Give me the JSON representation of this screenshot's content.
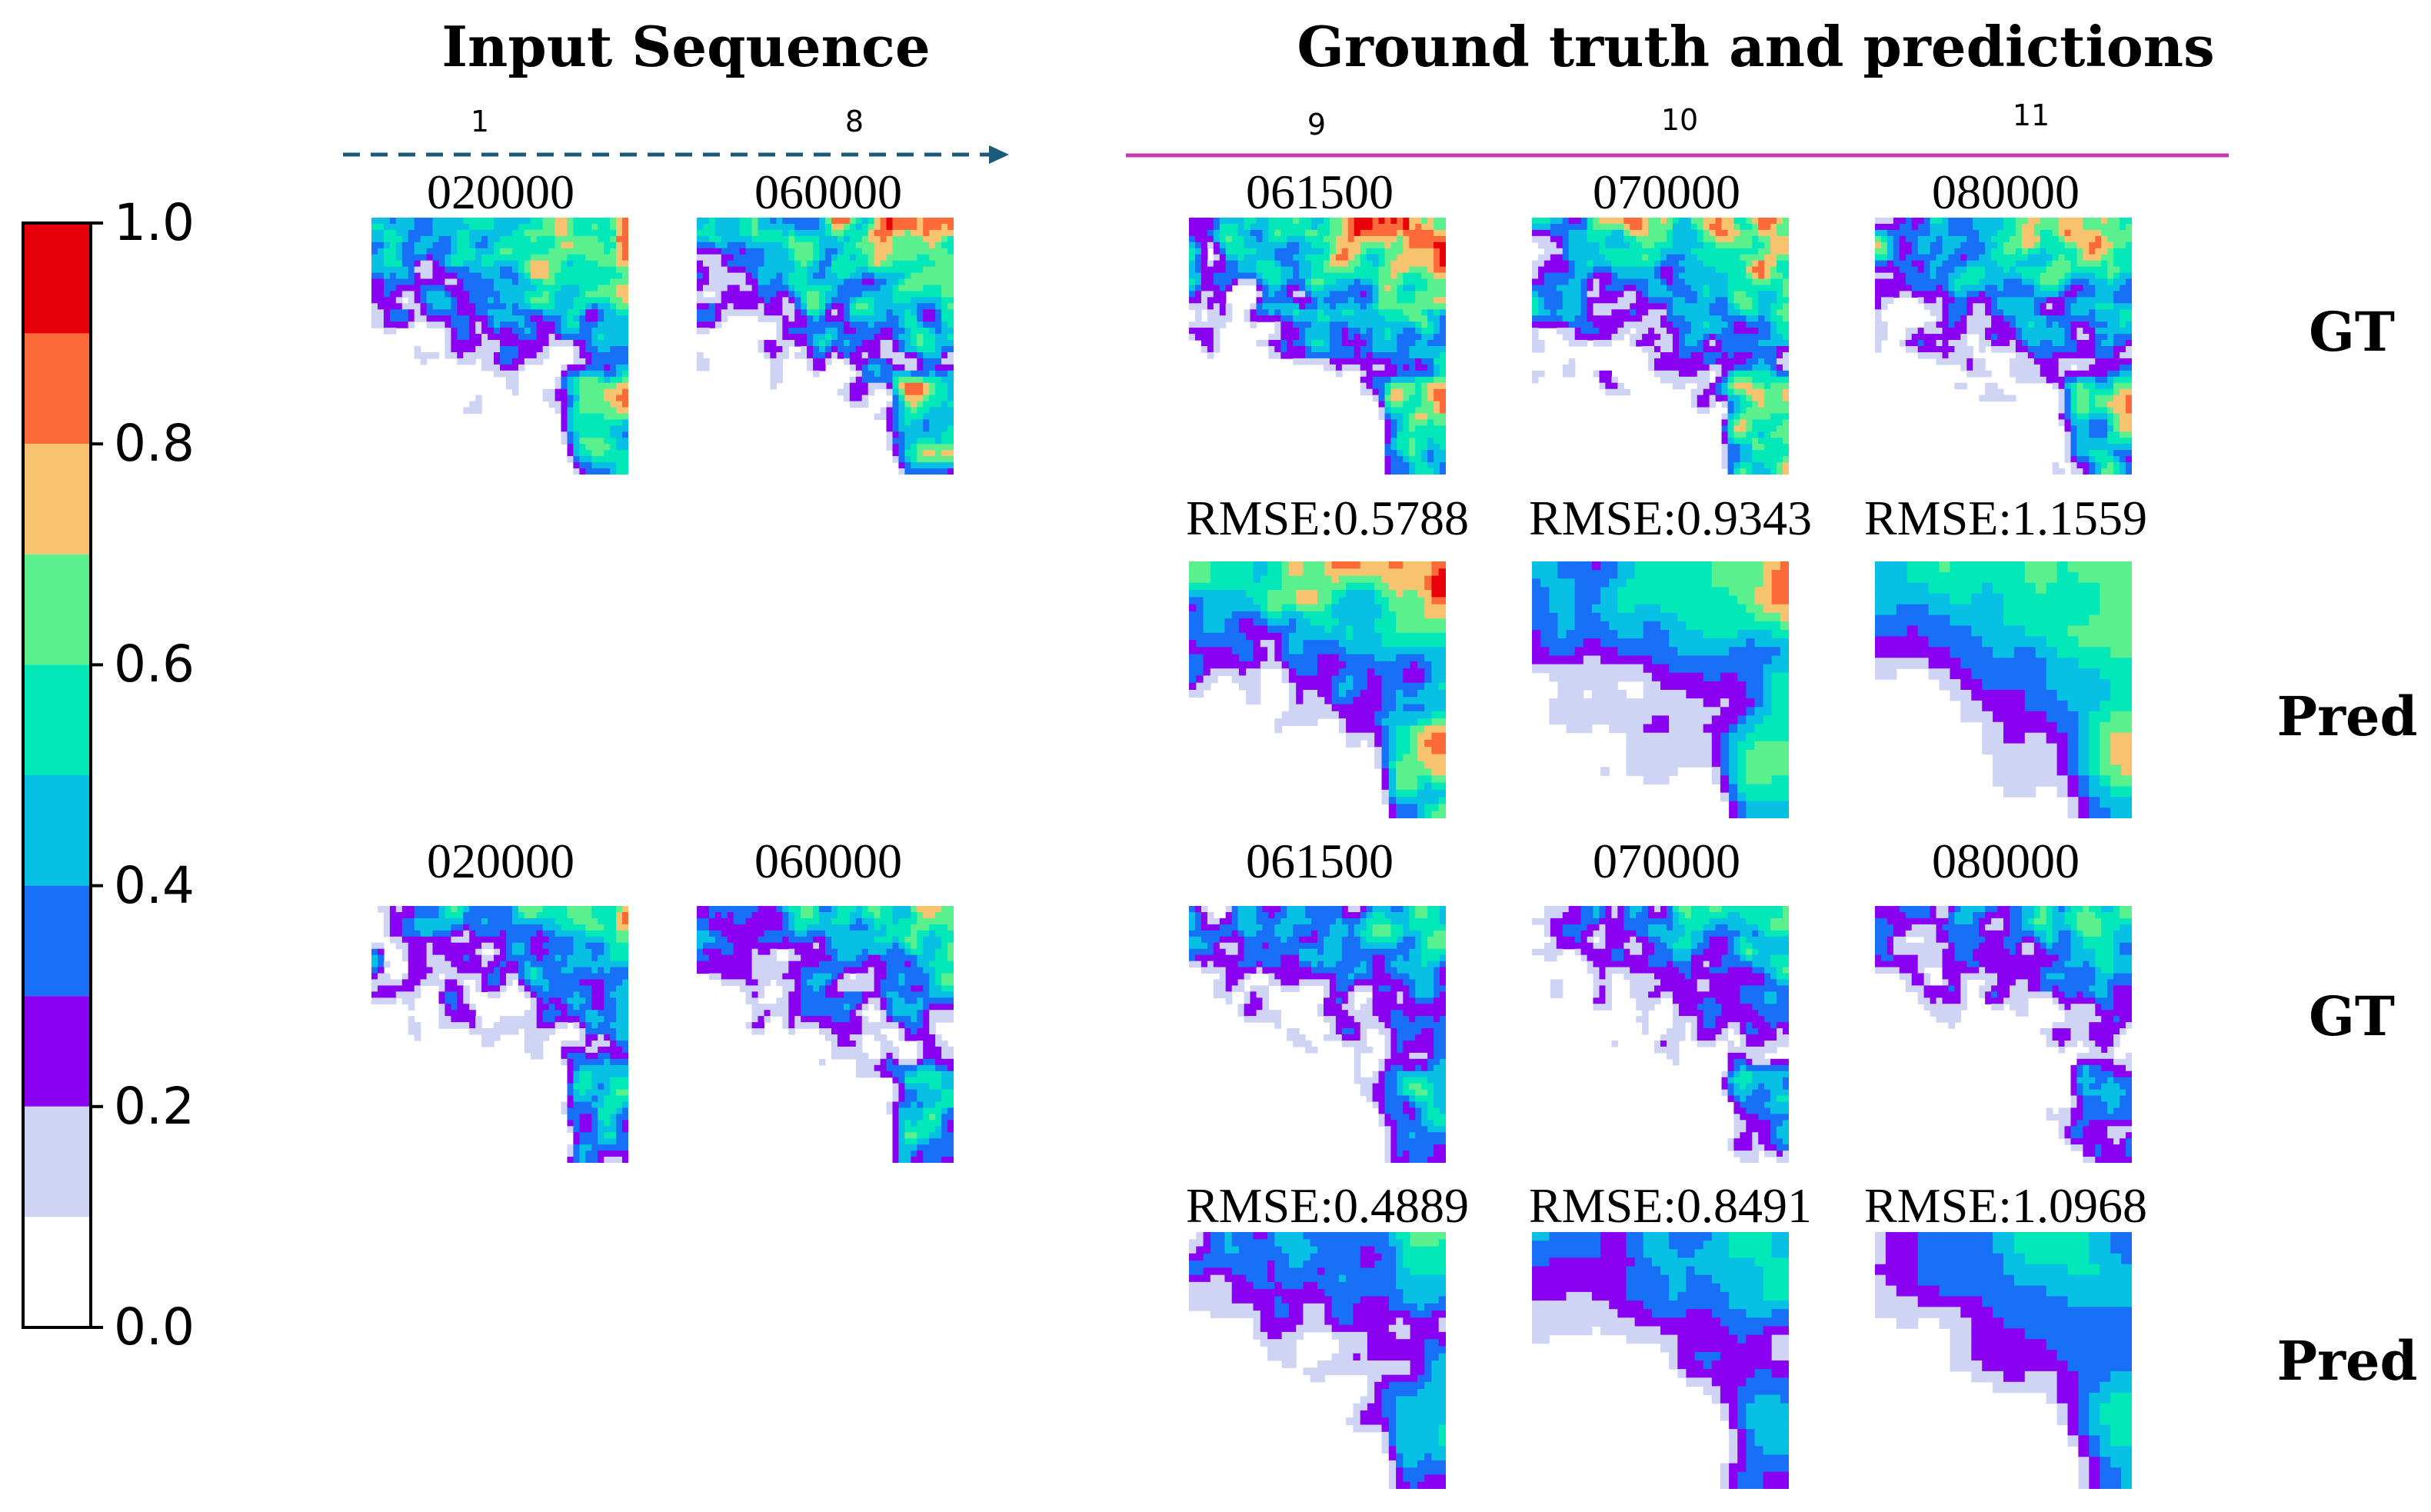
{
  "headings": {
    "input": "Input Sequence",
    "gt_pred": "Ground truth and predictions"
  },
  "step_numbers": {
    "first_input": "1",
    "last_input": "8",
    "pred1": "9",
    "pred2": "10",
    "pred3": "11"
  },
  "rows": [
    {
      "input_times": [
        "020000",
        "060000"
      ],
      "output_times": [
        "061500",
        "070000",
        "080000"
      ],
      "rmse": [
        "RMSE:0.5788",
        "RMSE:0.9343",
        "RMSE:1.1559"
      ],
      "gt_label": "GT",
      "pred_label": "Pred"
    },
    {
      "input_times": [
        "020000",
        "060000"
      ],
      "output_times": [
        "061500",
        "070000",
        "080000"
      ],
      "rmse": [
        "RMSE:0.4889",
        "RMSE:0.8491",
        "RMSE:1.0968"
      ],
      "gt_label": "GT",
      "pred_label": "Pred"
    }
  ],
  "colorbar": {
    "ticks": [
      "1.0",
      "0.8",
      "0.6",
      "0.4",
      "0.2",
      "0.0"
    ],
    "tick_values": [
      1.0,
      0.8,
      0.6,
      0.4,
      0.2,
      0.0
    ],
    "segments": [
      {
        "from": 0.9,
        "to": 1.0,
        "color": "#e8000b"
      },
      {
        "from": 0.8,
        "to": 0.9,
        "color": "#fd6a3a"
      },
      {
        "from": 0.7,
        "to": 0.8,
        "color": "#f8c36f"
      },
      {
        "from": 0.6,
        "to": 0.7,
        "color": "#5bf08e"
      },
      {
        "from": 0.5,
        "to": 0.6,
        "color": "#03e8b9"
      },
      {
        "from": 0.4,
        "to": 0.5,
        "color": "#07c0e3"
      },
      {
        "from": 0.3,
        "to": 0.4,
        "color": "#1770f6"
      },
      {
        "from": 0.2,
        "to": 0.3,
        "color": "#8a00f0"
      },
      {
        "from": 0.1,
        "to": 0.2,
        "color": "#cfd4f5"
      },
      {
        "from": 0.0,
        "to": 0.1,
        "color": "#ffffff"
      }
    ]
  },
  "colors": {
    "input_arrow": "#1b5a78",
    "gt_pred_line": "#c43bb0"
  }
}
